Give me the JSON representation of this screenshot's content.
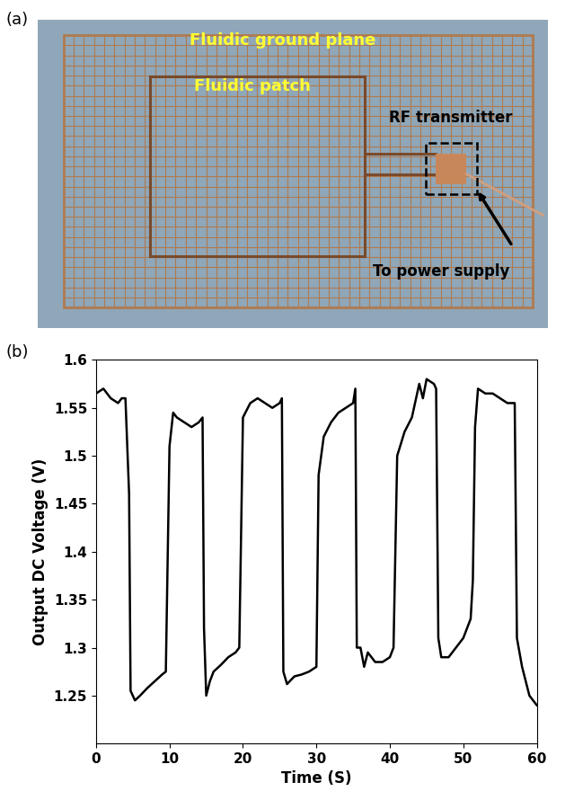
{
  "photo": {
    "panel_label": "(a)",
    "ground_plane": "Fluidic ground plane",
    "patch": "Fluidic patch",
    "transmitter": "RF transmitter",
    "supply": "To power supply"
  },
  "chart_data": {
    "type": "line",
    "title": "(b)",
    "x_label": "Time (S)",
    "y_label": "Output DC Voltage (V)",
    "x": [
      0,
      1,
      2,
      3,
      3.5,
      4,
      4.5,
      4.7,
      5.3,
      6,
      7,
      8,
      9,
      9.5,
      10,
      10.5,
      11,
      12,
      13,
      14,
      14.5,
      14.7,
      15,
      15.5,
      16,
      17,
      18,
      19,
      19.5,
      20,
      21,
      22,
      23,
      24,
      25,
      25.3,
      25.5,
      26,
      27,
      28,
      29,
      30,
      30.3,
      31,
      32,
      33,
      34,
      35,
      35.3,
      35.5,
      36,
      36.5,
      37,
      38,
      39,
      40,
      40.5,
      41,
      42,
      43,
      44,
      44.5,
      45,
      46,
      46.3,
      46.6,
      47,
      48,
      49,
      50,
      51,
      51.3,
      51.6,
      52,
      53,
      54,
      55,
      56,
      57,
      57.3,
      58,
      59,
      60
    ],
    "values": [
      1.565,
      1.57,
      1.56,
      1.555,
      1.56,
      1.56,
      1.46,
      1.255,
      1.245,
      1.25,
      1.258,
      1.265,
      1.272,
      1.275,
      1.51,
      1.545,
      1.54,
      1.535,
      1.53,
      1.535,
      1.54,
      1.32,
      1.25,
      1.265,
      1.275,
      1.282,
      1.29,
      1.295,
      1.3,
      1.54,
      1.555,
      1.56,
      1.555,
      1.55,
      1.555,
      1.56,
      1.275,
      1.262,
      1.27,
      1.272,
      1.275,
      1.28,
      1.48,
      1.52,
      1.535,
      1.545,
      1.55,
      1.555,
      1.57,
      1.3,
      1.3,
      1.28,
      1.295,
      1.285,
      1.285,
      1.29,
      1.3,
      1.5,
      1.525,
      1.54,
      1.575,
      1.56,
      1.58,
      1.575,
      1.57,
      1.31,
      1.29,
      1.29,
      1.3,
      1.31,
      1.33,
      1.37,
      1.53,
      1.57,
      1.565,
      1.565,
      1.56,
      1.555,
      1.555,
      1.31,
      1.28,
      1.25,
      1.24
    ],
    "color": "#000000",
    "xlim": [
      0,
      60
    ],
    "xticks": [
      0,
      10,
      20,
      30,
      40,
      50,
      60
    ],
    "ylim": [
      1.2,
      1.6
    ],
    "yticks": [
      1.25,
      1.3,
      1.35,
      1.4,
      1.45,
      1.5,
      1.55,
      1.6
    ],
    "grid": false
  }
}
